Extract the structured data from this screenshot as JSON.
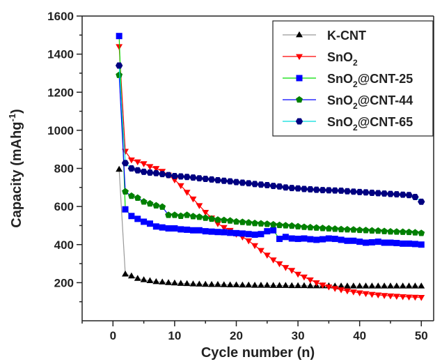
{
  "chart_data": {
    "type": "line",
    "title": "",
    "xlabel": "Cycle number (n)",
    "ylabel_parts": {
      "main": "Capacity (mAhg",
      "sup": "-1",
      "close": ")"
    },
    "xlim": [
      -5,
      52
    ],
    "ylim": [
      0,
      1600
    ],
    "xticks": [
      0,
      10,
      20,
      30,
      40,
      50
    ],
    "yticks": [
      200,
      400,
      600,
      800,
      1000,
      1200,
      1400,
      1600
    ],
    "legend_position": "top-right",
    "series": [
      {
        "name": "K-CNT",
        "name_parts": {
          "pre": "K-CNT",
          "sub": "",
          "post": ""
        },
        "line_color": "#999999",
        "marker_color": "#000000",
        "marker": "triangle-up",
        "x": [
          1,
          2,
          3,
          4,
          5,
          6,
          7,
          8,
          9,
          10,
          11,
          12,
          13,
          14,
          15,
          16,
          17,
          18,
          19,
          20,
          21,
          22,
          23,
          24,
          25,
          26,
          27,
          28,
          29,
          30,
          31,
          32,
          33,
          34,
          35,
          36,
          37,
          38,
          39,
          40,
          41,
          42,
          43,
          44,
          45,
          46,
          47,
          48,
          49,
          50
        ],
        "y": [
          795,
          245,
          235,
          222,
          215,
          210,
          205,
          203,
          200,
          198,
          196,
          195,
          193,
          192,
          191,
          190,
          190,
          189,
          188,
          188,
          187,
          187,
          186,
          186,
          186,
          185,
          185,
          185,
          184,
          184,
          184,
          183,
          183,
          183,
          183,
          182,
          182,
          182,
          182,
          182,
          182,
          182,
          182,
          182,
          182,
          182,
          182,
          182,
          182,
          182
        ]
      },
      {
        "name": "SnO2",
        "name_parts": {
          "pre": "SnO",
          "sub": "2",
          "post": ""
        },
        "line_color": "#ff0000",
        "marker_color": "#ff0000",
        "marker": "triangle-down",
        "x": [
          1,
          2,
          3,
          4,
          5,
          6,
          7,
          8,
          9,
          10,
          11,
          12,
          13,
          14,
          15,
          16,
          17,
          18,
          19,
          20,
          21,
          22,
          23,
          24,
          25,
          26,
          27,
          28,
          29,
          30,
          31,
          32,
          33,
          34,
          35,
          36,
          37,
          38,
          39,
          40,
          41,
          42,
          43,
          44,
          45,
          46,
          47,
          48,
          49,
          50
        ],
        "y": [
          1440,
          890,
          845,
          835,
          825,
          810,
          800,
          785,
          765,
          740,
          710,
          675,
          640,
          605,
          570,
          540,
          510,
          490,
          475,
          455,
          440,
          420,
          395,
          370,
          345,
          320,
          300,
          280,
          265,
          245,
          230,
          215,
          200,
          188,
          178,
          170,
          163,
          157,
          152,
          147,
          143,
          139,
          136,
          133,
          131,
          129,
          127,
          125,
          124,
          123
        ]
      },
      {
        "name": "SnO2@CNT-25",
        "name_parts": {
          "pre": "SnO",
          "sub": "2",
          "post": "@CNT-25"
        },
        "line_color": "#00dd00",
        "marker_color": "#0000ff",
        "marker": "square",
        "x": [
          1,
          2,
          3,
          4,
          5,
          6,
          7,
          8,
          9,
          10,
          11,
          12,
          13,
          14,
          15,
          16,
          17,
          18,
          19,
          20,
          21,
          22,
          23,
          24,
          25,
          26,
          27,
          28,
          29,
          30,
          31,
          32,
          33,
          34,
          35,
          36,
          37,
          38,
          39,
          40,
          41,
          42,
          43,
          44,
          45,
          46,
          47,
          48,
          49,
          50
        ],
        "y": [
          1495,
          585,
          550,
          535,
          520,
          510,
          495,
          490,
          485,
          485,
          480,
          478,
          475,
          475,
          470,
          468,
          466,
          465,
          462,
          460,
          458,
          455,
          452,
          455,
          470,
          475,
          430,
          440,
          432,
          430,
          432,
          428,
          425,
          428,
          432,
          430,
          425,
          420,
          420,
          415,
          410,
          412,
          415,
          410,
          410,
          408,
          405,
          405,
          403,
          400
        ]
      },
      {
        "name": "SnO2@CNT-44",
        "name_parts": {
          "pre": "SnO",
          "sub": "2",
          "post": "@CNT-44"
        },
        "line_color": "#0000ff",
        "marker_color": "#008000",
        "marker": "pentagon",
        "x": [
          1,
          2,
          3,
          4,
          5,
          6,
          7,
          8,
          9,
          10,
          11,
          12,
          13,
          14,
          15,
          16,
          17,
          18,
          19,
          20,
          21,
          22,
          23,
          24,
          25,
          26,
          27,
          28,
          29,
          30,
          31,
          32,
          33,
          34,
          35,
          36,
          37,
          38,
          39,
          40,
          41,
          42,
          43,
          44,
          45,
          46,
          47,
          48,
          49,
          50
        ],
        "y": [
          1290,
          678,
          655,
          645,
          625,
          615,
          605,
          598,
          555,
          555,
          550,
          555,
          548,
          545,
          540,
          535,
          530,
          528,
          525,
          520,
          518,
          515,
          512,
          510,
          508,
          505,
          502,
          500,
          498,
          495,
          492,
          490,
          488,
          486,
          484,
          482,
          480,
          479,
          478,
          476,
          475,
          473,
          472,
          470,
          468,
          467,
          466,
          465,
          463,
          460
        ]
      },
      {
        "name": "SnO2@CNT-65",
        "name_parts": {
          "pre": "SnO",
          "sub": "2",
          "post": "@CNT-65"
        },
        "line_color": "#00dddd",
        "marker_color": "#000080",
        "marker": "hexagon",
        "x": [
          1,
          2,
          3,
          4,
          5,
          6,
          7,
          8,
          9,
          10,
          11,
          12,
          13,
          14,
          15,
          16,
          17,
          18,
          19,
          20,
          21,
          22,
          23,
          24,
          25,
          26,
          27,
          28,
          29,
          30,
          31,
          32,
          33,
          34,
          35,
          36,
          37,
          38,
          39,
          40,
          41,
          42,
          43,
          44,
          45,
          46,
          47,
          48,
          49,
          50
        ],
        "y": [
          1340,
          828,
          800,
          790,
          782,
          778,
          775,
          770,
          765,
          760,
          758,
          755,
          752,
          748,
          745,
          742,
          738,
          735,
          732,
          728,
          725,
          722,
          718,
          715,
          712,
          708,
          705,
          700,
          697,
          695,
          692,
          690,
          688,
          686,
          685,
          684,
          683,
          680,
          678,
          676,
          674,
          672,
          670,
          668,
          666,
          664,
          662,
          660,
          650,
          625
        ]
      }
    ]
  }
}
